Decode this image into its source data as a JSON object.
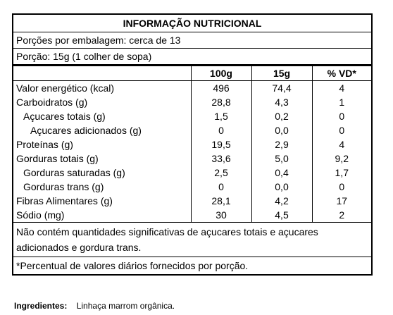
{
  "label": {
    "title": "INFORMAÇÃO NUTRICIONAL",
    "servings_per_package": "Porções por embalagem: cerca de 13",
    "serving_size": "Porção: 15g (1 colher de sopa)",
    "columns": [
      "100g",
      "15g",
      "% VD*"
    ],
    "rows": [
      {
        "name": "Valor energético (kcal)",
        "v100": "496",
        "v15": "74,4",
        "vd": "4"
      },
      {
        "name": "Carboidratos (g)",
        "v100": "28,8",
        "v15": "4,3",
        "vd": "1"
      },
      {
        "name": "Açucares totais (g)",
        "v100": "1,5",
        "v15": "0,2",
        "vd": "0"
      },
      {
        "name": "Açucares adicionados (g)",
        "v100": "0",
        "v15": "0,0",
        "vd": "0"
      },
      {
        "name": "Proteínas (g)",
        "v100": "19,5",
        "v15": "2,9",
        "vd": "4"
      },
      {
        "name": "Gorduras totais (g)",
        "v100": "33,6",
        "v15": "5,0",
        "vd": "9,2"
      },
      {
        "name": "Gorduras saturadas (g)",
        "v100": "2,5",
        "v15": "0,4",
        "vd": "1,7"
      },
      {
        "name": "Gorduras trans (g)",
        "v100": "0",
        "v15": "0,0",
        "vd": "0"
      },
      {
        "name": "Fibras Alimentares (g)",
        "v100": "28,1",
        "v15": "4,2",
        "vd": "17"
      },
      {
        "name": "Sódio (mg)",
        "v100": "30",
        "v15": "4,5",
        "vd": "2"
      }
    ],
    "note": "Não contém quantidades significativas de açucares totais e açucares adicionados e gordura trans.",
    "footnote": "*Percentual de valores diários fornecidos por porção."
  },
  "ingredients": {
    "label": "Ingredientes:",
    "text": "Linhaça marrom orgânica."
  }
}
